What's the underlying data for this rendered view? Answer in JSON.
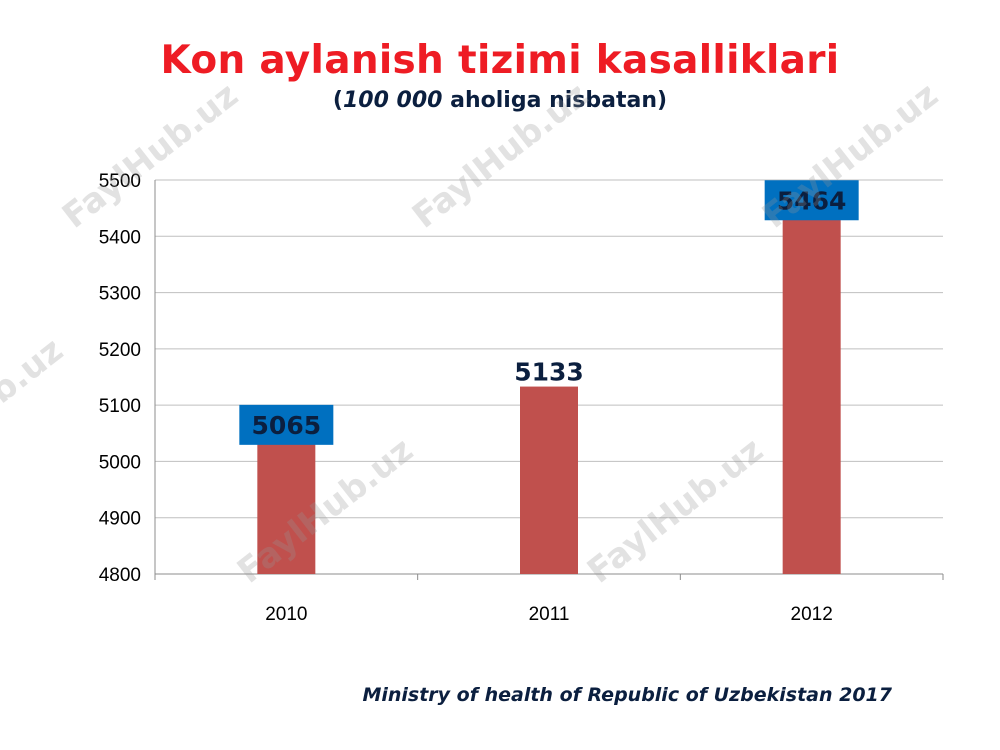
{
  "slide": {
    "title": "Kon aylanish tizimi kasalliklari",
    "subtitle_open": "(",
    "subtitle_italic": "100 000",
    "subtitle_rest": " aholiga nisbatan)",
    "source": "Ministry of health of Republic of Uzbekistan 2017",
    "watermark": "FaylHub.uz"
  },
  "chart_data": {
    "type": "bar",
    "title": "",
    "xlabel": "",
    "ylabel": "",
    "categories": [
      "2010",
      "2011",
      "2012"
    ],
    "values": [
      5065,
      5133,
      5464
    ],
    "ylim": [
      4800,
      5500
    ],
    "yticks": [
      4800,
      4900,
      5000,
      5100,
      5200,
      5300,
      5400,
      5500
    ],
    "grid": true,
    "legend": "none",
    "bar_color": "#c0504d",
    "label_box_color": "#0070c0",
    "label_text_color": "#0b1f3f",
    "boxed_labels": [
      true,
      false,
      true
    ]
  }
}
